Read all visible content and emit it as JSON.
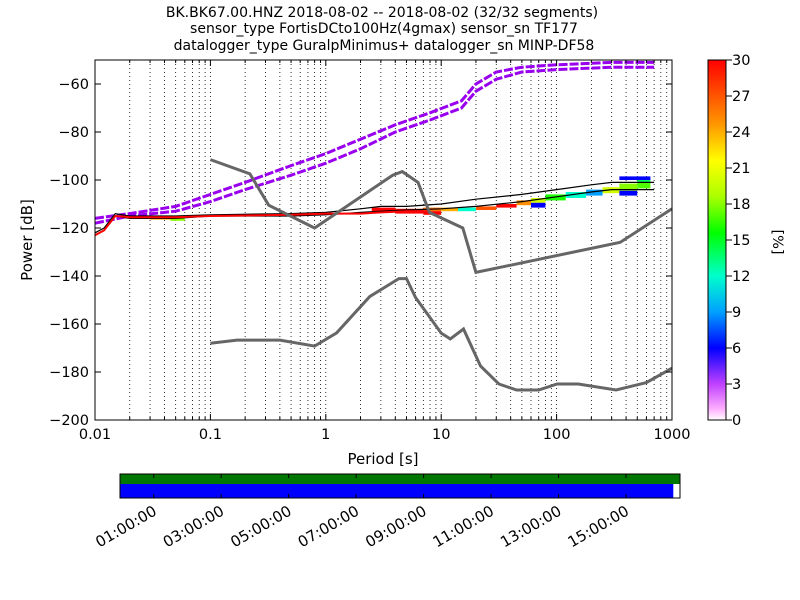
{
  "chart_data": {
    "type": "heatmap",
    "title_lines": [
      "BK.BK67.00.HNZ   2018-08-02 -- 2018-08-02  (32/32 segments)",
      "sensor_type FortisDCto100Hz(4gmax) sensor_sn TF177",
      "datalogger_type GuralpMinimus+ datalogger_sn MINP-DF58"
    ],
    "xlabel": "Period [s]",
    "ylabel": "Power [dB]",
    "x_scale": "log",
    "xlim": [
      0.01,
      1000
    ],
    "ylim": [
      -200,
      -50
    ],
    "x_ticks": [
      0.01,
      0.1,
      1,
      10,
      100,
      1000
    ],
    "x_tick_labels": [
      "0.01",
      "0.1",
      "1",
      "10",
      "100",
      "1000"
    ],
    "y_ticks": [
      -200,
      -180,
      -160,
      -140,
      -120,
      -100,
      -80,
      -60
    ],
    "y_tick_labels": [
      "−200",
      "−180",
      "−160",
      "−140",
      "−120",
      "−100",
      "−80",
      "−60"
    ],
    "grid": "dotted vertical lines",
    "colorbar": {
      "label": "[%]",
      "range": [
        0,
        30
      ],
      "ticks": [
        0,
        3,
        6,
        9,
        12,
        15,
        18,
        21,
        24,
        27,
        30
      ],
      "tick_labels": [
        "0",
        "3",
        "6",
        "9",
        "12",
        "15",
        "18",
        "21",
        "24",
        "27",
        "30"
      ],
      "colormap": "pqlx"
    },
    "nhnm": {
      "x": [
        0.1,
        0.17,
        0.4,
        0.8,
        1.24,
        2.4,
        4.3,
        5.0,
        6.0,
        10.0,
        12.0,
        15.6,
        21.9,
        31.6,
        45.0,
        70.0,
        101.0,
        154.0,
        328.0,
        600.0,
        1000.0
      ],
      "y": [
        -168,
        -166.7,
        -166.7,
        -169.2,
        -163.7,
        -148.6,
        -141.1,
        -141.1,
        -149.0,
        -163.8,
        -166.2,
        -162.1,
        -177.5,
        -185.0,
        -187.5,
        -187.5,
        -185.0,
        -185.0,
        -187.5,
        -184.4,
        -178.4
      ]
    },
    "nlnm": {
      "x": [
        0.1,
        0.22,
        0.32,
        0.8,
        3.8,
        4.6,
        6.3,
        7.9,
        15.4,
        20.0,
        354.8,
        1000.0
      ],
      "y": [
        -91.5,
        -97.4,
        -110.5,
        -120.0,
        -98.0,
        -96.5,
        -101.0,
        -113.5,
        -120.0,
        -138.5,
        -126.0,
        -112.0
      ]
    },
    "psd_traces": [
      {
        "name": "",
        "color": "#9900ee",
        "x": [
          0.01,
          0.02,
          0.05,
          0.1,
          0.2,
          0.5,
          1,
          2,
          4,
          8,
          15,
          20,
          30,
          50,
          100,
          300,
          700
        ],
        "y": [
          -116,
          -114,
          -111,
          -106,
          -101,
          -94,
          -89,
          -83,
          -77,
          -72,
          -67,
          -60,
          -55,
          -53,
          -52,
          -51,
          -51
        ]
      },
      {
        "name": "",
        "color": "#9900ee",
        "x": [
          0.01,
          0.02,
          0.05,
          0.1,
          0.2,
          0.5,
          1,
          2,
          4,
          8,
          15,
          20,
          30,
          50,
          100,
          300,
          700
        ],
        "y": [
          -118,
          -115,
          -113,
          -109,
          -104,
          -98,
          -93,
          -87,
          -80,
          -75,
          -70,
          -63,
          -58,
          -55,
          -54,
          -53,
          -53
        ]
      },
      {
        "name": "",
        "color": "#000000",
        "x": [
          0.01,
          0.012,
          0.015,
          0.02,
          0.05,
          0.1,
          0.5,
          1,
          2,
          3,
          5,
          10,
          20,
          50,
          100,
          200,
          300,
          700
        ],
        "y": [
          -122,
          -120,
          -114,
          -115,
          -115,
          -114.5,
          -114,
          -113.5,
          -112,
          -111,
          -111,
          -110,
          -108,
          -106,
          -104,
          -102,
          -101,
          -101
        ]
      },
      {
        "name": "",
        "color": "#000000",
        "x": [
          0.01,
          0.012,
          0.015,
          0.02,
          0.05,
          0.1,
          0.5,
          1,
          2,
          3,
          5,
          10,
          20,
          50,
          100,
          200,
          300,
          700
        ],
        "y": [
          -123,
          -121,
          -115,
          -116,
          -116,
          -115,
          -115,
          -114.5,
          -113.5,
          -113,
          -112.5,
          -112,
          -111,
          -109,
          -107,
          -105,
          -104,
          -104
        ]
      },
      {
        "name": "",
        "color": "#ff0000",
        "x": [
          0.01,
          0.012,
          0.015,
          0.02,
          0.05,
          0.1,
          0.5,
          1,
          2,
          3,
          5,
          8
        ],
        "y": [
          -123,
          -121,
          -115,
          -115.5,
          -115.5,
          -115,
          -114.5,
          -114,
          -114,
          -113.5,
          -113,
          -113
        ]
      }
    ],
    "psd_heat_cells": [
      {
        "x0": 0.045,
        "x1": 0.06,
        "y0": -117,
        "y1": -116,
        "value": 18
      },
      {
        "x0": 0.03,
        "x1": 0.045,
        "y0": -116.5,
        "y1": -115.5,
        "value": 24
      },
      {
        "x0": 2.5,
        "x1": 4.0,
        "y0": -113,
        "y1": -111.5,
        "value": 30
      },
      {
        "x0": 4.0,
        "x1": 7.0,
        "y0": -114,
        "y1": -112,
        "value": 30
      },
      {
        "x0": 7.0,
        "x1": 10.0,
        "y0": -113,
        "y1": -111.5,
        "value": 26
      },
      {
        "x0": 7.0,
        "x1": 10.0,
        "y0": -114.5,
        "y1": -113,
        "value": 30
      },
      {
        "x0": 10.0,
        "x1": 14.0,
        "y0": -113,
        "y1": -111.5,
        "value": 24
      },
      {
        "x0": 14.0,
        "x1": 20.0,
        "y0": -113,
        "y1": -111.5,
        "value": 12
      },
      {
        "x0": 20.0,
        "x1": 30.0,
        "y0": -112.5,
        "y1": -111,
        "value": 27
      },
      {
        "x0": 30.0,
        "x1": 45.0,
        "y0": -111.5,
        "y1": -110,
        "value": 30
      },
      {
        "x0": 45.0,
        "x1": 60.0,
        "y0": -110.5,
        "y1": -108.5,
        "value": 25
      },
      {
        "x0": 60.0,
        "x1": 80.0,
        "y0": -109.5,
        "y1": -107.5,
        "value": 20
      },
      {
        "x0": 60.0,
        "x1": 80.0,
        "y0": -111.5,
        "y1": -109.5,
        "value": 6
      },
      {
        "x0": 80.0,
        "x1": 120.0,
        "y0": -108.5,
        "y1": -106,
        "value": 16
      },
      {
        "x0": 120.0,
        "x1": 180.0,
        "y0": -107.5,
        "y1": -105,
        "value": 12
      },
      {
        "x0": 180.0,
        "x1": 250.0,
        "y0": -106.5,
        "y1": -104,
        "value": 9
      },
      {
        "x0": 250.0,
        "x1": 350.0,
        "y0": -105.5,
        "y1": -103,
        "value": 20
      },
      {
        "x0": 350.0,
        "x1": 500.0,
        "y0": -104.5,
        "y1": -101.5,
        "value": 18
      },
      {
        "x0": 350.0,
        "x1": 500.0,
        "y0": -106.5,
        "y1": -104.5,
        "value": 6
      },
      {
        "x0": 500.0,
        "x1": 650.0,
        "y0": -103.5,
        "y1": -101,
        "value": 17
      },
      {
        "x0": 500.0,
        "x1": 650.0,
        "y0": -101,
        "y1": -99,
        "value": 14
      },
      {
        "x0": 350.0,
        "x1": 650.0,
        "y0": -100,
        "y1": -98.5,
        "value": 6
      }
    ],
    "coverage": {
      "time_ticks": [
        "01:00:00",
        "03:00:00",
        "05:00:00",
        "07:00:00",
        "09:00:00",
        "11:00:00",
        "13:00:00",
        "15:00:00"
      ],
      "time_tick_hours": [
        1,
        3,
        5,
        7,
        9,
        11,
        13,
        15
      ],
      "range_hours": [
        0,
        16.6
      ],
      "data_end_hours": 16.4,
      "data_color": "#0000ff",
      "used_color": "#007700"
    }
  }
}
